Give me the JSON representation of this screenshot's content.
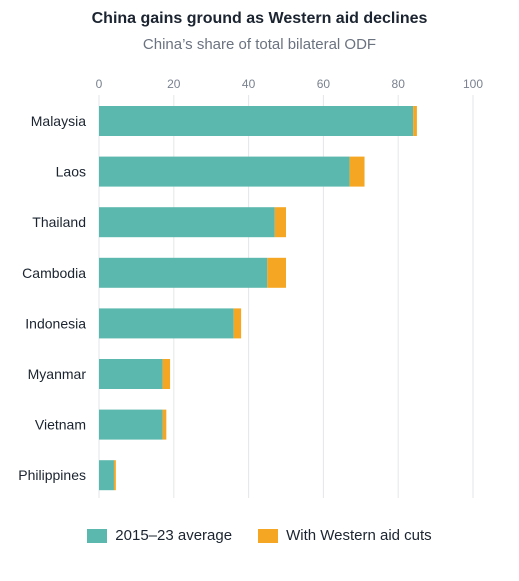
{
  "chart_data": {
    "type": "bar",
    "orientation": "horizontal",
    "stacked": true,
    "title": "China gains ground as Western aid declines",
    "subtitle": "China’s share of total bilateral ODF",
    "categories": [
      "Malaysia",
      "Laos",
      "Thailand",
      "Cambodia",
      "Indonesia",
      "Myanmar",
      "Vietnam",
      "Philippines"
    ],
    "series": [
      {
        "name": "2015–23 average",
        "color": "#5bb8ae",
        "values": [
          84,
          67,
          47,
          45,
          36,
          17,
          17,
          4
        ]
      },
      {
        "name": "With Western aid cuts",
        "color": "#f5a623",
        "values": [
          1,
          4,
          3,
          5,
          2,
          2,
          1,
          0.5
        ]
      }
    ],
    "xlim": [
      0,
      100
    ],
    "xticks": [
      0,
      20,
      40,
      60,
      80,
      100
    ],
    "x_axis_position": "top",
    "grid": true,
    "legend_position": "bottom"
  }
}
